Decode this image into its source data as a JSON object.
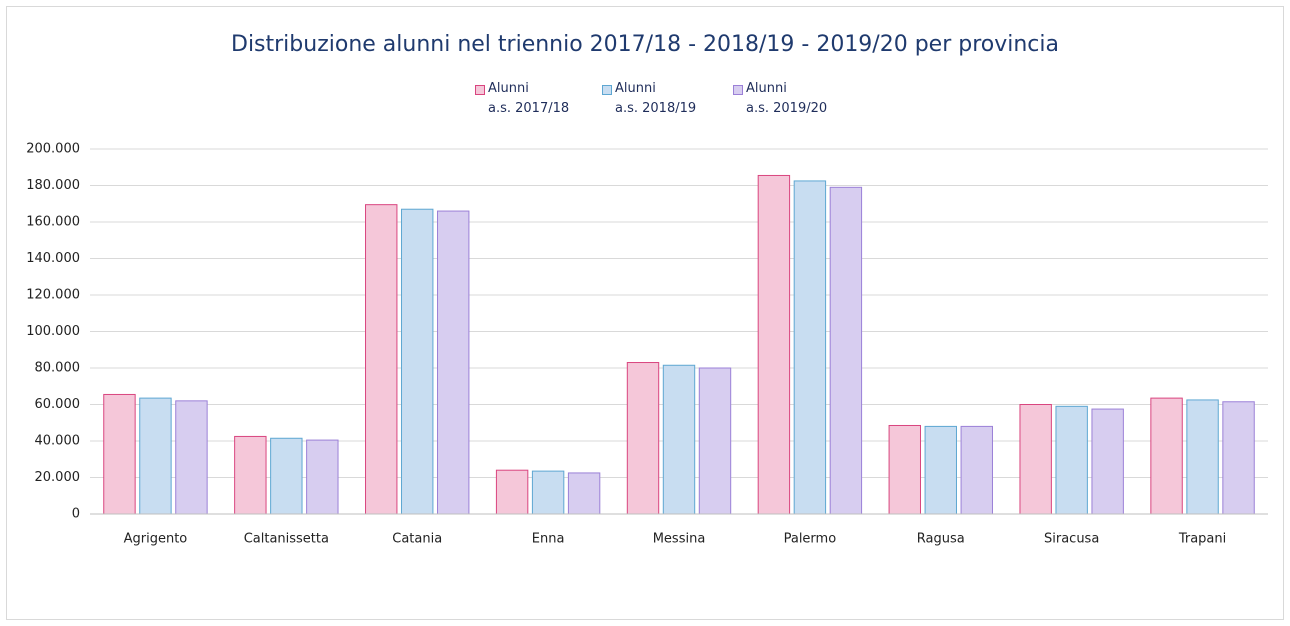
{
  "chart_data": {
    "type": "bar",
    "title": "Distribuzione alunni nel triennio 2017/18 - 2018/19 - 2019/20 per provincia",
    "categories": [
      "Agrigento",
      "Caltanissetta",
      "Catania",
      "Enna",
      "Messina",
      "Palermo",
      "Ragusa",
      "Siracusa",
      "Trapani"
    ],
    "series": [
      {
        "name": "Alunni\na.s. 2017/18",
        "color": "#f5c7d9",
        "edgecolor": "#d9457f",
        "values": [
          65500,
          42500,
          169500,
          24000,
          83000,
          185500,
          48500,
          60000,
          63500
        ]
      },
      {
        "name": "Alunni\na.s. 2018/19",
        "color": "#c8ddf1",
        "edgecolor": "#5ea7d2",
        "values": [
          63500,
          41500,
          167000,
          23500,
          81500,
          182500,
          48000,
          59000,
          62500
        ]
      },
      {
        "name": "Alunni\na.s. 2019/20",
        "color": "#d7cdf0",
        "edgecolor": "#9b80d7",
        "values": [
          62000,
          40500,
          166000,
          22500,
          80000,
          179000,
          48000,
          57500,
          61500
        ]
      }
    ],
    "ylim": [
      0,
      200000
    ],
    "yticks": [
      0,
      {
        "value": 20000,
        "label": "20.000"
      },
      {
        "value": 40000,
        "label": "40.000"
      },
      {
        "value": 60000,
        "label": "60.000"
      },
      {
        "value": 80000,
        "label": "80.000"
      },
      {
        "value": 100000,
        "label": "100.000"
      },
      {
        "value": 120000,
        "label": "120.000"
      },
      {
        "value": 140000,
        "label": "140.000"
      },
      {
        "value": 160000,
        "label": "160.000"
      },
      {
        "value": 180000,
        "label": "180.000"
      },
      {
        "value": 200000,
        "label": "200.000"
      }
    ],
    "grid": true,
    "legend": "top"
  }
}
